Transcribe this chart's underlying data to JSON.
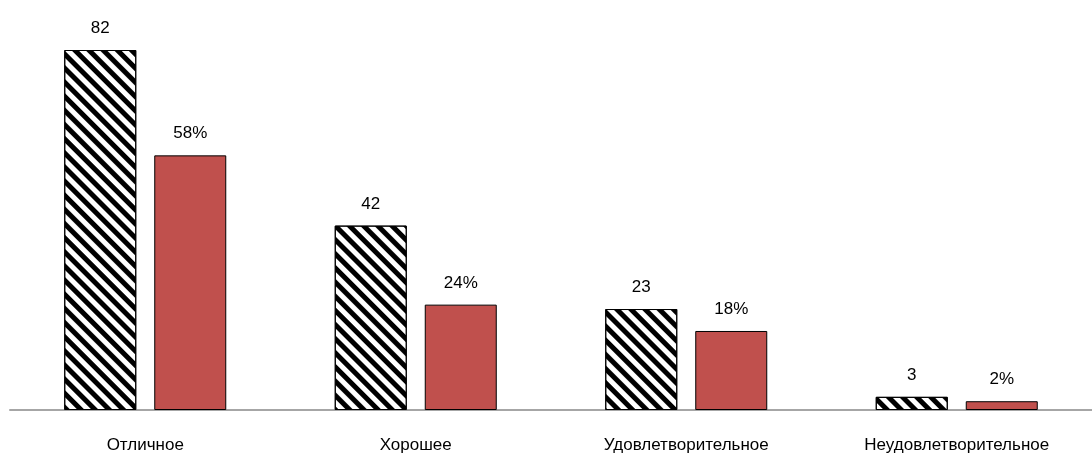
{
  "chart_data": {
    "type": "bar",
    "categories": [
      "Отличное",
      "Хорошее",
      "Удовлетворительное",
      "Неудовлетворительное"
    ],
    "series": [
      {
        "color": "#000000",
        "values": [
          82,
          42,
          23,
          3
        ],
        "value_labels": [
          "82",
          "42",
          "23",
          "3"
        ]
      },
      {
        "color": "#c0504d",
        "values": [
          58,
          24,
          18,
          2
        ],
        "value_labels": [
          "58%",
          "24%",
          "18%",
          "2%"
        ]
      }
    ]
  }
}
